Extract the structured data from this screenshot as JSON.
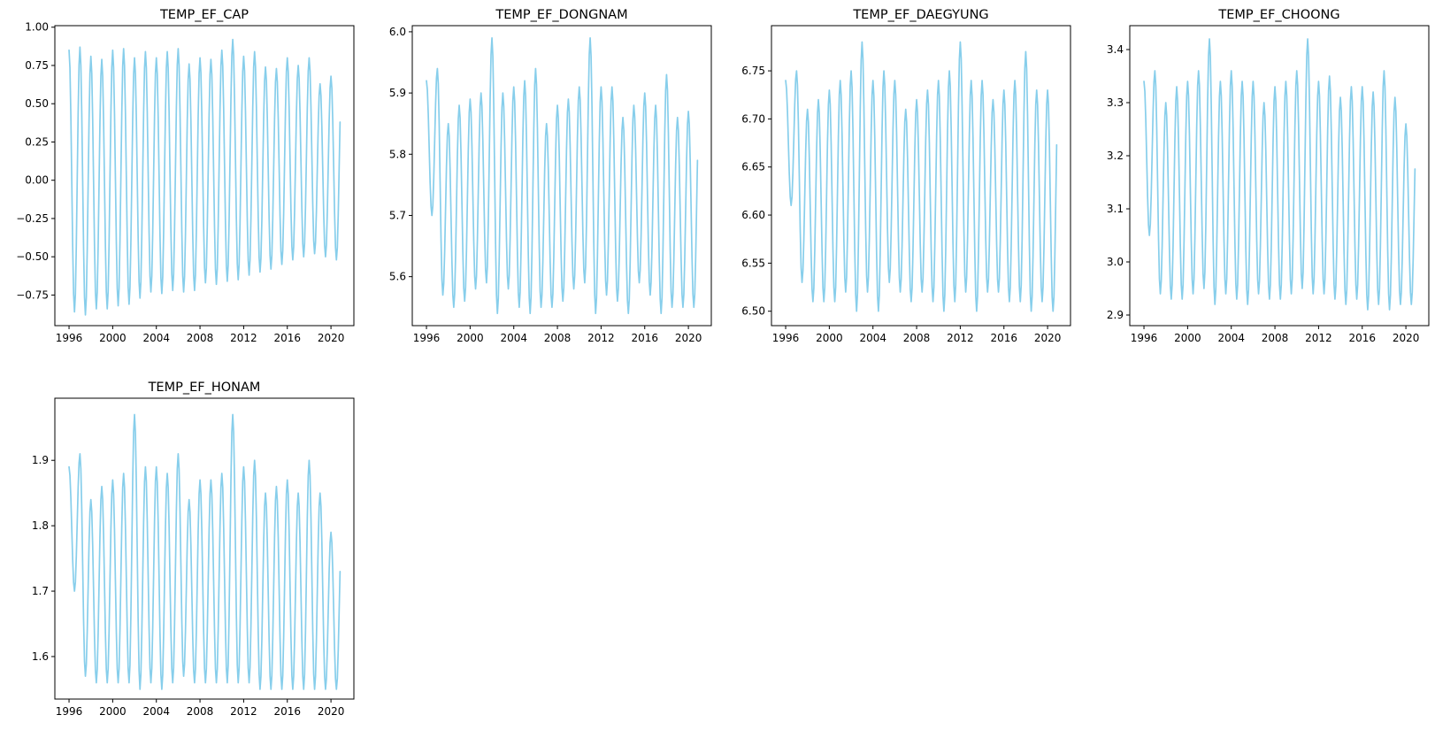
{
  "figure": {
    "background": "#ffffff",
    "line_color": "#87ceeb"
  },
  "chart_data": [
    {
      "type": "line",
      "title": "TEMP_EF_CAP",
      "xlabel": "",
      "ylabel": "",
      "xlim": [
        1994.7,
        2022.1
      ],
      "ylim": [
        -0.95,
        1.01
      ],
      "xticks": [
        1996,
        2000,
        2004,
        2008,
        2012,
        2016,
        2020
      ],
      "yticks": [
        -0.75,
        -0.5,
        -0.25,
        0.0,
        0.25,
        0.5,
        0.75,
        1.0
      ],
      "ytick_labels": [
        "−0.75",
        "−0.50",
        "−0.25",
        "0.00",
        "0.25",
        "0.50",
        "0.75",
        "1.00"
      ],
      "grid": false,
      "series": [
        {
          "x_start": 1996.0,
          "x_step": 0.083333,
          "peaks": [
            0.85,
            0.87,
            0.81,
            0.79,
            0.85,
            0.86,
            0.8,
            0.84,
            0.8,
            0.84,
            0.86,
            0.76,
            0.8,
            0.79,
            0.85,
            0.92,
            0.81,
            0.84,
            0.74,
            0.73,
            0.8,
            0.75,
            0.8,
            0.63,
            0.68
          ],
          "troughs": [
            -0.86,
            -0.88,
            -0.84,
            -0.84,
            -0.82,
            -0.81,
            -0.77,
            -0.73,
            -0.74,
            -0.72,
            -0.73,
            -0.72,
            -0.67,
            -0.68,
            -0.66,
            -0.65,
            -0.62,
            -0.6,
            -0.58,
            -0.55,
            -0.52,
            -0.5,
            -0.48,
            -0.5,
            -0.52
          ],
          "values": []
        }
      ]
    },
    {
      "type": "line",
      "title": "TEMP_EF_DONGNAM",
      "xlabel": "",
      "ylabel": "",
      "xlim": [
        1994.7,
        2022.1
      ],
      "ylim": [
        5.52,
        6.01
      ],
      "xticks": [
        1996,
        2000,
        2004,
        2008,
        2012,
        2016,
        2020
      ],
      "yticks": [
        5.6,
        5.7,
        5.8,
        5.9,
        6.0
      ],
      "ytick_labels": [
        "5.6",
        "5.7",
        "5.8",
        "5.9",
        "6.0"
      ],
      "grid": false,
      "series": [
        {
          "x_start": 1996.0,
          "x_step": 0.083333,
          "peaks": [
            5.92,
            5.94,
            5.85,
            5.88,
            5.89,
            5.9,
            5.99,
            5.9,
            5.91,
            5.92,
            5.94,
            5.85,
            5.88,
            5.89,
            5.91,
            5.99,
            5.91,
            5.91,
            5.86,
            5.88,
            5.9,
            5.88,
            5.93,
            5.86,
            5.87
          ],
          "troughs": [
            5.7,
            5.57,
            5.55,
            5.56,
            5.58,
            5.59,
            5.54,
            5.58,
            5.55,
            5.54,
            5.55,
            5.55,
            5.56,
            5.58,
            5.59,
            5.54,
            5.57,
            5.56,
            5.54,
            5.59,
            5.57,
            5.54,
            5.55,
            5.55,
            5.55
          ],
          "values": []
        }
      ]
    },
    {
      "type": "line",
      "title": "TEMP_EF_DAEGYUNG",
      "xlabel": "",
      "ylabel": "",
      "xlim": [
        1994.7,
        2022.1
      ],
      "ylim": [
        6.485,
        6.797
      ],
      "xticks": [
        1996,
        2000,
        2004,
        2008,
        2012,
        2016,
        2020
      ],
      "yticks": [
        6.5,
        6.55,
        6.6,
        6.65,
        6.7,
        6.75
      ],
      "ytick_labels": [
        "6.50",
        "6.55",
        "6.60",
        "6.65",
        "6.70",
        "6.75"
      ],
      "grid": false,
      "series": [
        {
          "x_start": 1996.0,
          "x_step": 0.083333,
          "peaks": [
            6.74,
            6.75,
            6.71,
            6.72,
            6.73,
            6.74,
            6.75,
            6.78,
            6.74,
            6.75,
            6.74,
            6.71,
            6.72,
            6.73,
            6.74,
            6.75,
            6.78,
            6.74,
            6.74,
            6.72,
            6.73,
            6.74,
            6.77,
            6.73,
            6.73
          ],
          "troughs": [
            6.61,
            6.53,
            6.51,
            6.51,
            6.51,
            6.52,
            6.5,
            6.52,
            6.5,
            6.53,
            6.52,
            6.51,
            6.52,
            6.51,
            6.5,
            6.51,
            6.52,
            6.5,
            6.52,
            6.52,
            6.51,
            6.51,
            6.5,
            6.51,
            6.5
          ],
          "values": []
        }
      ]
    },
    {
      "type": "line",
      "title": "TEMP_EF_CHOONG",
      "xlabel": "",
      "ylabel": "",
      "xlim": [
        1994.7,
        2022.1
      ],
      "ylim": [
        2.88,
        3.445
      ],
      "xticks": [
        1996,
        2000,
        2004,
        2008,
        2012,
        2016,
        2020
      ],
      "yticks": [
        2.9,
        3.0,
        3.1,
        3.2,
        3.3,
        3.4
      ],
      "ytick_labels": [
        "2.9",
        "3.0",
        "3.1",
        "3.2",
        "3.3",
        "3.4"
      ],
      "grid": false,
      "series": [
        {
          "x_start": 1996.0,
          "x_step": 0.083333,
          "peaks": [
            3.34,
            3.36,
            3.3,
            3.33,
            3.34,
            3.36,
            3.42,
            3.34,
            3.36,
            3.34,
            3.34,
            3.3,
            3.33,
            3.34,
            3.36,
            3.42,
            3.34,
            3.35,
            3.31,
            3.33,
            3.33,
            3.32,
            3.36,
            3.31,
            3.26
          ],
          "troughs": [
            3.05,
            2.94,
            2.93,
            2.93,
            2.94,
            2.95,
            2.92,
            2.94,
            2.93,
            2.92,
            2.94,
            2.93,
            2.93,
            2.94,
            2.95,
            2.94,
            2.94,
            2.93,
            2.92,
            2.93,
            2.91,
            2.92,
            2.91,
            2.92,
            2.92
          ],
          "values": []
        }
      ]
    },
    {
      "type": "line",
      "title": "TEMP_EF_HONAM",
      "xlabel": "",
      "ylabel": "",
      "xlim": [
        1994.7,
        2022.1
      ],
      "ylim": [
        1.535,
        1.995
      ],
      "xticks": [
        1996,
        2000,
        2004,
        2008,
        2012,
        2016,
        2020
      ],
      "yticks": [
        1.6,
        1.7,
        1.8,
        1.9
      ],
      "ytick_labels": [
        "1.6",
        "1.7",
        "1.8",
        "1.9"
      ],
      "grid": false,
      "series": [
        {
          "x_start": 1996.0,
          "x_step": 0.083333,
          "peaks": [
            1.89,
            1.91,
            1.84,
            1.86,
            1.87,
            1.88,
            1.97,
            1.89,
            1.89,
            1.88,
            1.91,
            1.84,
            1.87,
            1.87,
            1.88,
            1.97,
            1.89,
            1.9,
            1.85,
            1.86,
            1.87,
            1.85,
            1.9,
            1.85,
            1.79
          ],
          "troughs": [
            1.7,
            1.57,
            1.56,
            1.56,
            1.56,
            1.56,
            1.55,
            1.56,
            1.55,
            1.56,
            1.57,
            1.56,
            1.56,
            1.56,
            1.56,
            1.56,
            1.56,
            1.55,
            1.55,
            1.55,
            1.55,
            1.55,
            1.55,
            1.55,
            1.55
          ],
          "values": []
        }
      ]
    }
  ]
}
